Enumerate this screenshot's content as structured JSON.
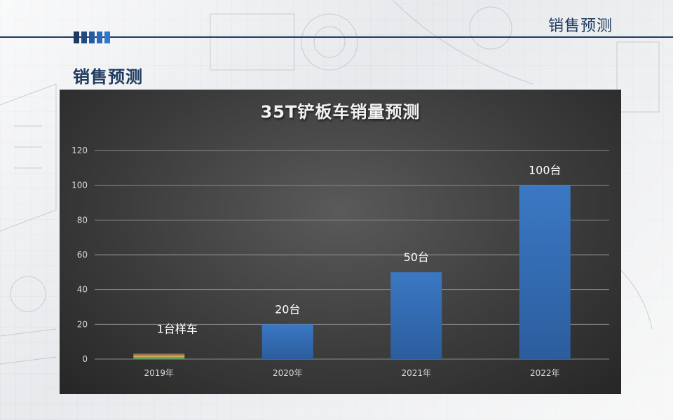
{
  "header": {
    "title": "销售预测"
  },
  "section": {
    "title": "销售预测"
  },
  "colors": {
    "accent_blocks": [
      "#1f3a60",
      "#1f4b82",
      "#245aa0",
      "#2a6ab8",
      "#2f78cc"
    ],
    "bar": "#3b78c4",
    "bar_dark": "#2b5d9d",
    "grid": "#8a8a8a"
  },
  "chart_data": {
    "type": "bar",
    "title": "35T铲板车销量预测",
    "xlabel": "",
    "ylabel": "",
    "categories": [
      "2019年",
      "2020年",
      "2021年",
      "2022年"
    ],
    "values": [
      1,
      20,
      50,
      100
    ],
    "data_labels": [
      "1台样车",
      "20台",
      "50台",
      "100台"
    ],
    "ylim": [
      0,
      120
    ],
    "yticks": [
      0,
      20,
      40,
      60,
      80,
      100,
      120
    ],
    "grid": true
  }
}
